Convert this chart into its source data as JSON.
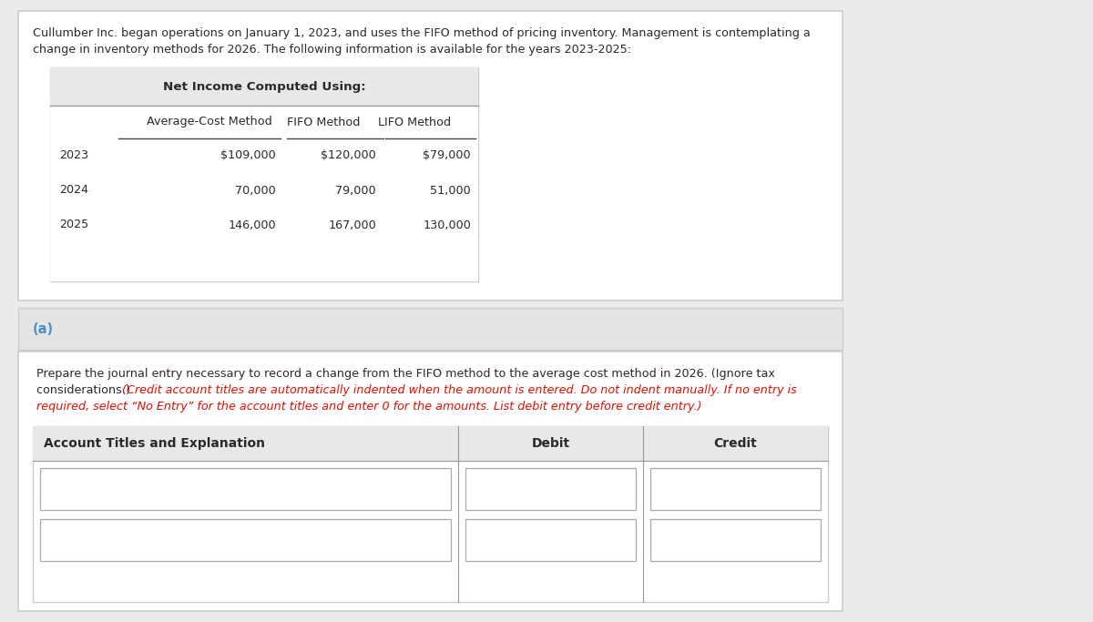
{
  "bg_color": "#ebebeb",
  "top_box_bg": "#ffffff",
  "top_box_edge": "#cccccc",
  "tbl_header_bg": "#e8e8e8",
  "tbl_header_text": "Net Income Computed Using:",
  "col_headers": [
    "Average-Cost Method",
    "FIFO Method",
    "LIFO Method"
  ],
  "row_labels": [
    "2023",
    "2024",
    "2025"
  ],
  "table_data": [
    [
      "$109,000",
      "$120,000",
      "$79,000"
    ],
    [
      "70,000",
      "79,000",
      "51,000"
    ],
    [
      "146,000",
      "167,000",
      "130,000"
    ]
  ],
  "intro_line1": "Cullumber Inc. began operations on January 1, 2023, and uses the FIFO method of pricing inventory. Management is contemplating a",
  "intro_line2": "change in inventory methods for 2026. The following information is available for the years 2023-2025:",
  "section_a_label": "(a)",
  "section_a_bg": "#e4e4e4",
  "section_a_edge": "#cccccc",
  "section_a_color": "#4a90c4",
  "instr_line1": "Prepare the journal entry necessary to record a change from the FIFO method to the average cost method in 2026. (Ignore tax",
  "instr_line2_normal": "considerations.) ",
  "instr_line2_red": "(Credit account titles are automatically indented when the amount is entered. Do not indent manually. If no entry is",
  "instr_line3_red": "required, select “No Entry” for the account titles and enter 0 for the amounts. List debit entry before credit entry.)",
  "bottom_box_bg": "#ffffff",
  "bottom_box_edge": "#cccccc",
  "journal_hdr_bg": "#e8e8e8",
  "journal_cols": [
    "Account Titles and Explanation",
    "Debit",
    "Credit"
  ],
  "input_bg": "#ffffff",
  "input_edge": "#aaaaaa",
  "text_color": "#2a2a2a",
  "line_color": "#999999",
  "fs_intro": 9.2,
  "fs_tbl": 9.2,
  "fs_section": 10.5,
  "fs_instr": 9.2,
  "fs_journal_hdr": 10.0
}
